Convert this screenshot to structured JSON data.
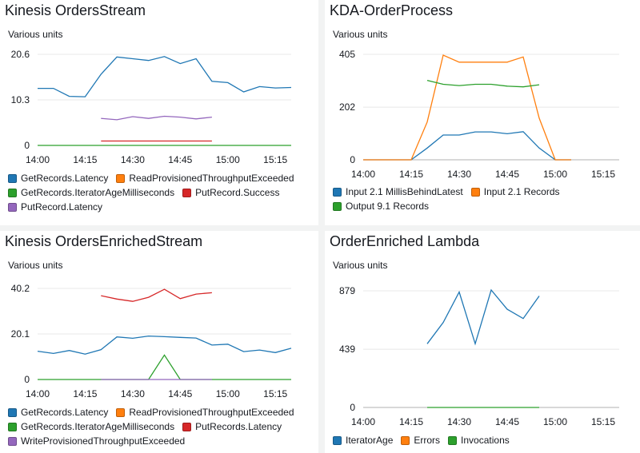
{
  "widgets": [
    {
      "title": "Kinesis OrdersStream",
      "units": "Various units",
      "chart_data": {
        "type": "line",
        "x_ticks": [
          "14:00",
          "14:15",
          "14:30",
          "14:45",
          "15:00",
          "15:15"
        ],
        "y_ticks": [
          "0",
          "10.3",
          "20.6"
        ],
        "ylim": [
          0,
          20.6
        ],
        "xlim": [
          0,
          80
        ],
        "series": [
          {
            "name": "GetRecords.Latency",
            "color": "#1f77b4",
            "x": [
              0,
              5,
              10,
              15,
              20,
              25,
              30,
              35,
              40,
              45,
              50,
              55,
              60,
              65,
              70,
              75,
              80
            ],
            "y": [
              12.9,
              12.9,
              11.1,
              11.0,
              16.1,
              20.0,
              19.6,
              19.2,
              20.1,
              18.5,
              19.6,
              14.5,
              14.2,
              12.1,
              13.3,
              13.0,
              13.1
            ]
          },
          {
            "name": "ReadProvisionedThroughputExceeded",
            "color": "#ff7f0e",
            "x": [],
            "y": []
          },
          {
            "name": "GetRecords.IteratorAgeMilliseconds",
            "color": "#2ca02c",
            "x": [
              0,
              80
            ],
            "y": [
              0,
              0
            ]
          },
          {
            "name": "PutRecord.Success",
            "color": "#d62728",
            "x": [
              20,
              25,
              30,
              35,
              40,
              45,
              50,
              55
            ],
            "y": [
              1,
              1,
              1,
              1,
              1,
              1,
              1,
              1
            ]
          },
          {
            "name": "PutRecord.Latency",
            "color": "#9467bd",
            "x": [
              20,
              25,
              30,
              35,
              40,
              45,
              50,
              55
            ],
            "y": [
              6.1,
              5.8,
              6.5,
              6.1,
              6.6,
              6.4,
              6.0,
              6.4
            ]
          }
        ]
      }
    },
    {
      "title": "KDA-OrderProcess",
      "units": "Various units",
      "chart_data": {
        "type": "line",
        "x_ticks": [
          "14:00",
          "14:15",
          "14:30",
          "14:45",
          "15:00",
          "15:15"
        ],
        "y_ticks": [
          "0",
          "202",
          "405"
        ],
        "ylim": [
          0,
          405
        ],
        "xlim": [
          0,
          80
        ],
        "series": [
          {
            "name": "Input 2.1 MillisBehindLatest",
            "color": "#1f77b4",
            "x": [
              0,
              5,
              10,
              15,
              20,
              25,
              30,
              35,
              40,
              45,
              50,
              55,
              60,
              65
            ],
            "y": [
              0,
              0,
              0,
              0,
              45,
              95,
              95,
              107,
              107,
              100,
              108,
              45,
              0,
              0
            ]
          },
          {
            "name": "Input 2.1 Records",
            "color": "#ff7f0e",
            "x": [
              0,
              5,
              10,
              15,
              20,
              25,
              30,
              35,
              40,
              45,
              50,
              55,
              60,
              65
            ],
            "y": [
              0,
              0,
              0,
              0,
              145,
              402,
              375,
              375,
              375,
              375,
              395,
              160,
              0,
              0
            ]
          },
          {
            "name": "Output 9.1 Records",
            "color": "#2ca02c",
            "x": [
              20,
              25,
              30,
              35,
              40,
              45,
              50,
              55
            ],
            "y": [
              305,
              290,
              285,
              290,
              290,
              283,
              280,
              288
            ]
          }
        ]
      }
    },
    {
      "title": "Kinesis OrdersEnrichedStream",
      "units": "Various units",
      "chart_data": {
        "type": "line",
        "x_ticks": [
          "14:00",
          "14:15",
          "14:30",
          "14:45",
          "15:00",
          "15:15"
        ],
        "y_ticks": [
          "0",
          "20.1",
          "40.2"
        ],
        "ylim": [
          0,
          40.2
        ],
        "xlim": [
          0,
          80
        ],
        "series": [
          {
            "name": "GetRecords.Latency",
            "color": "#1f77b4",
            "x": [
              0,
              5,
              10,
              15,
              20,
              25,
              30,
              35,
              40,
              45,
              50,
              55,
              60,
              65,
              70,
              75,
              80
            ],
            "y": [
              12.5,
              11.5,
              12.8,
              11.2,
              13.2,
              18.8,
              18.2,
              19.2,
              18.9,
              18.6,
              18.3,
              15.2,
              15.6,
              12.3,
              13.0,
              11.9,
              13.8
            ]
          },
          {
            "name": "ReadProvisionedThroughputExceeded",
            "color": "#ff7f0e",
            "x": [],
            "y": []
          },
          {
            "name": "GetRecords.IteratorAgeMilliseconds",
            "color": "#2ca02c",
            "x": [
              0,
              30,
              35,
              40,
              45,
              50,
              80
            ],
            "y": [
              0,
              0,
              0,
              10.8,
              0,
              0,
              0
            ]
          },
          {
            "name": "PutRecords.Latency",
            "color": "#d62728",
            "x": [
              20,
              25,
              30,
              35,
              40,
              45,
              50,
              55
            ],
            "y": [
              37.0,
              35.5,
              34.5,
              36.3,
              39.8,
              35.7,
              37.7,
              38.3
            ]
          },
          {
            "name": "WriteProvisionedThroughputExceeded",
            "color": "#9467bd",
            "x": [
              20,
              55
            ],
            "y": [
              0,
              0
            ]
          }
        ]
      }
    },
    {
      "title": "OrderEnriched Lambda",
      "units": "Various units",
      "chart_data": {
        "type": "line",
        "x_ticks": [
          "14:00",
          "14:15",
          "14:30",
          "14:45",
          "15:00",
          "15:15"
        ],
        "y_ticks": [
          "0",
          "439",
          "879"
        ],
        "ylim": [
          0,
          879
        ],
        "xlim": [
          0,
          80
        ],
        "series": [
          {
            "name": "IteratorAge",
            "color": "#1f77b4",
            "x": [
              20,
              25,
              30,
              35,
              40,
              45,
              50,
              55
            ],
            "y": [
              480,
              640,
              870,
              480,
              885,
              740,
              670,
              840
            ]
          },
          {
            "name": "Errors",
            "color": "#ff7f0e",
            "x": [],
            "y": []
          },
          {
            "name": "Invocations",
            "color": "#2ca02c",
            "x": [
              20,
              55
            ],
            "y": [
              0,
              0
            ]
          }
        ]
      }
    }
  ]
}
